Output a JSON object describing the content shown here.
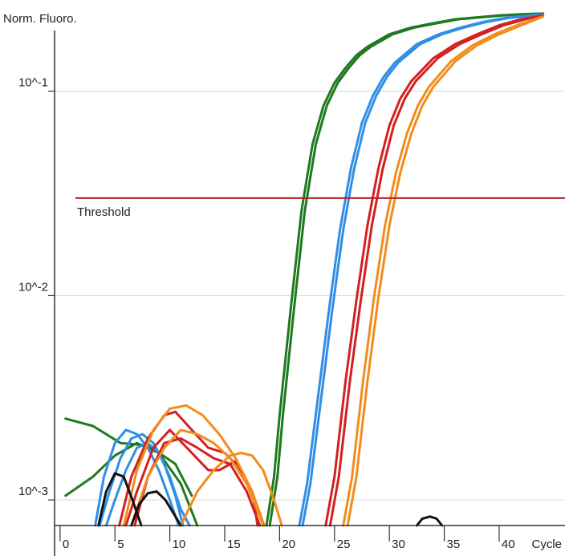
{
  "chart_data": {
    "type": "line",
    "ylabel": "Norm. Fluoro.",
    "xlabel": "Cycle",
    "yscale": "log",
    "xlim": [
      -0.5,
      46
    ],
    "ylim": [
      0.00075,
      0.26
    ],
    "x_ticks": [
      0,
      5,
      10,
      15,
      20,
      25,
      30,
      35,
      40
    ],
    "x_tick_labels": [
      "0",
      "5",
      "10",
      "15",
      "20",
      "25",
      "30",
      "35",
      "40"
    ],
    "y_ticks": [
      0.1,
      0.01,
      0.001
    ],
    "y_tick_labels": [
      "10^-1",
      "10^-2",
      "10^-3"
    ],
    "grid": true,
    "threshold": {
      "label": "Threshold",
      "value": 0.03,
      "color": "#b22222"
    },
    "series": [
      {
        "color": "#1f7a1f",
        "x": [
          18.8,
          19.5,
          20,
          21,
          22,
          23,
          24,
          25,
          26,
          27,
          28,
          30,
          32,
          34,
          36,
          38,
          40,
          42,
          44
        ],
        "y": [
          0.00075,
          0.0013,
          0.0026,
          0.0085,
          0.026,
          0.055,
          0.085,
          0.11,
          0.13,
          0.15,
          0.165,
          0.19,
          0.205,
          0.215,
          0.225,
          0.23,
          0.235,
          0.238,
          0.24
        ]
      },
      {
        "color": "#1f7a1f",
        "x": [
          19.1,
          19.8,
          20.3,
          21.3,
          22.3,
          23.3,
          24.3,
          25.3,
          26.3,
          27.3,
          28.3,
          30.3,
          32.3,
          34.3,
          36.3,
          38.3,
          40.3,
          42.3,
          44
        ],
        "y": [
          0.00075,
          0.0013,
          0.0026,
          0.0085,
          0.026,
          0.055,
          0.085,
          0.11,
          0.13,
          0.15,
          0.165,
          0.19,
          0.205,
          0.215,
          0.225,
          0.23,
          0.235,
          0.238,
          0.24
        ]
      },
      {
        "color": "#2f8fe6",
        "x": [
          21.8,
          22.5,
          23.5,
          24.5,
          25.5,
          26.5,
          27.5,
          28.5,
          29.5,
          30.5,
          32.5,
          34.5,
          36.5,
          38.5,
          40.5,
          42.5,
          44
        ],
        "y": [
          0.00075,
          0.0012,
          0.0032,
          0.0085,
          0.021,
          0.042,
          0.07,
          0.095,
          0.118,
          0.138,
          0.17,
          0.19,
          0.205,
          0.218,
          0.228,
          0.234,
          0.238
        ]
      },
      {
        "color": "#2f8fe6",
        "x": [
          22.1,
          22.8,
          23.8,
          24.8,
          25.8,
          26.8,
          27.8,
          28.8,
          29.8,
          30.8,
          32.8,
          34.8,
          36.8,
          38.8,
          40.8,
          42.8,
          44
        ],
        "y": [
          0.00075,
          0.0012,
          0.0032,
          0.0085,
          0.021,
          0.042,
          0.07,
          0.095,
          0.118,
          0.138,
          0.17,
          0.19,
          0.205,
          0.218,
          0.228,
          0.234,
          0.238
        ]
      },
      {
        "color": "#d42020",
        "x": [
          24.2,
          25,
          26,
          27,
          28,
          29,
          30,
          31,
          32,
          34,
          36,
          38,
          40,
          42,
          44
        ],
        "y": [
          0.00075,
          0.0013,
          0.0038,
          0.0095,
          0.022,
          0.042,
          0.068,
          0.092,
          0.112,
          0.145,
          0.17,
          0.19,
          0.21,
          0.225,
          0.235
        ]
      },
      {
        "color": "#d42020",
        "x": [
          24.6,
          25.4,
          26.4,
          27.4,
          28.4,
          29.4,
          30.4,
          31.4,
          32.4,
          34.4,
          36.4,
          38.4,
          40.4,
          42.4,
          44
        ],
        "y": [
          0.00075,
          0.0013,
          0.0038,
          0.0095,
          0.022,
          0.042,
          0.068,
          0.092,
          0.112,
          0.145,
          0.17,
          0.19,
          0.21,
          0.225,
          0.235
        ]
      },
      {
        "color": "#f28c1c",
        "x": [
          25.8,
          26.6,
          27.6,
          28.6,
          29.6,
          30.6,
          31.6,
          32.6,
          33.6,
          35.6,
          37.6,
          39.6,
          41.6,
          44
        ],
        "y": [
          0.00075,
          0.0013,
          0.0038,
          0.0098,
          0.022,
          0.04,
          0.062,
          0.085,
          0.105,
          0.14,
          0.168,
          0.19,
          0.21,
          0.232
        ]
      },
      {
        "color": "#f28c1c",
        "x": [
          26.2,
          27,
          28,
          29,
          30,
          31,
          32,
          33,
          34,
          36,
          38,
          40,
          42,
          44
        ],
        "y": [
          0.00075,
          0.0013,
          0.0038,
          0.0098,
          0.022,
          0.04,
          0.062,
          0.085,
          0.105,
          0.14,
          0.168,
          0.19,
          0.21,
          0.232
        ]
      },
      {
        "color": "#1f7a1f",
        "x": [
          0.5,
          3,
          5.5,
          8,
          10.5,
          12
        ],
        "y": [
          0.0025,
          0.0023,
          0.0019,
          0.00185,
          0.0015,
          0.00105
        ]
      },
      {
        "color": "#1f7a1f",
        "x": [
          0.5,
          3,
          5,
          7,
          9,
          11,
          12.5
        ],
        "y": [
          0.00105,
          0.0013,
          0.00165,
          0.0019,
          0.0017,
          0.0012,
          0.00075
        ]
      },
      {
        "color": "#2f8fe6",
        "x": [
          3.2,
          4,
          5,
          6,
          7,
          8,
          9,
          10,
          10.8
        ],
        "y": [
          0.00075,
          0.0013,
          0.0019,
          0.0022,
          0.0021,
          0.0018,
          0.0014,
          0.001,
          0.00075
        ]
      },
      {
        "color": "#2f8fe6",
        "x": [
          3.6,
          4.5,
          5.5,
          6.5,
          7.5,
          8.5,
          9.5,
          10.5,
          11.2
        ],
        "y": [
          0.00075,
          0.0011,
          0.0016,
          0.002,
          0.0021,
          0.0019,
          0.0015,
          0.00105,
          0.00075
        ]
      },
      {
        "color": "#2f8fe6",
        "x": [
          4.2,
          5,
          6,
          7,
          8,
          9,
          10,
          11,
          11.8
        ],
        "y": [
          0.00075,
          0.001,
          0.0014,
          0.0018,
          0.0019,
          0.0017,
          0.0013,
          0.0009,
          0.00075
        ]
      },
      {
        "color": "#d42020",
        "x": [
          5.4,
          6.5,
          8,
          9.5,
          10.5,
          12,
          13.5,
          15,
          16
        ],
        "y": [
          0.00075,
          0.0013,
          0.002,
          0.0026,
          0.0027,
          0.0022,
          0.0018,
          0.0017,
          0.0015
        ]
      },
      {
        "color": "#d42020",
        "x": [
          6,
          7,
          8.5,
          10,
          12,
          13.5,
          14.5,
          16,
          17.5,
          18
        ],
        "y": [
          0.00075,
          0.0011,
          0.0018,
          0.0022,
          0.0017,
          0.0014,
          0.0014,
          0.00155,
          0.0011,
          0.00075
        ]
      },
      {
        "color": "#d42020",
        "x": [
          6.8,
          8,
          9.5,
          11,
          12.5,
          14,
          15.5,
          17,
          18.2
        ],
        "y": [
          0.00075,
          0.0013,
          0.0019,
          0.002,
          0.0018,
          0.0016,
          0.0015,
          0.0011,
          0.00075
        ]
      },
      {
        "color": "#f28c1c",
        "x": [
          5.8,
          7,
          8.5,
          10,
          11.5,
          13,
          14.5,
          16,
          17.5,
          18.6
        ],
        "y": [
          0.00075,
          0.0014,
          0.0022,
          0.0028,
          0.0029,
          0.0026,
          0.0021,
          0.0016,
          0.0011,
          0.00075
        ]
      },
      {
        "color": "#f28c1c",
        "x": [
          6.5,
          8,
          9.5,
          11,
          12.5,
          14,
          15.5,
          17,
          18.5
        ],
        "y": [
          0.00075,
          0.0013,
          0.0018,
          0.0022,
          0.0021,
          0.0019,
          0.0016,
          0.0012,
          0.00075
        ]
      },
      {
        "color": "#f28c1c",
        "x": [
          11,
          12.5,
          14,
          15.5,
          16.5,
          17.5,
          18.5,
          19.5,
          20.2
        ],
        "y": [
          0.00075,
          0.0011,
          0.0014,
          0.00165,
          0.0017,
          0.00165,
          0.0014,
          0.001,
          0.00075
        ]
      },
      {
        "color": "#111111",
        "x": [
          3.5,
          4.2,
          5,
          5.8,
          6.6,
          7.4
        ],
        "y": [
          0.00075,
          0.0011,
          0.00135,
          0.0013,
          0.001,
          0.00075
        ]
      },
      {
        "color": "#111111",
        "x": [
          6.5,
          7.2,
          8,
          8.8,
          9.6,
          10.4,
          11
        ],
        "y": [
          0.00075,
          0.00095,
          0.00108,
          0.0011,
          0.001,
          0.00085,
          0.00075
        ]
      },
      {
        "color": "#111111",
        "x": [
          32.5,
          33,
          33.7,
          34.3,
          34.8
        ],
        "y": [
          0.00075,
          0.00081,
          0.00083,
          0.00081,
          0.00075
        ]
      }
    ]
  }
}
